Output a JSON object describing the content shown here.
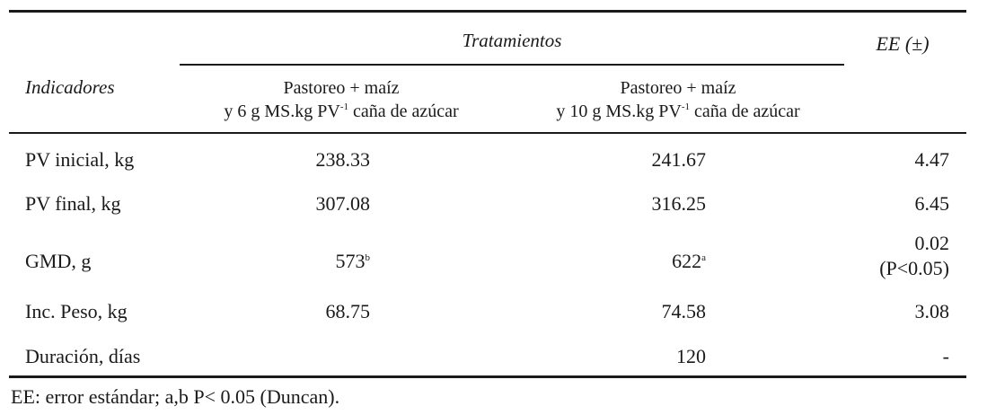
{
  "header": {
    "row_label": "Indicadores",
    "group": "Tratamientos",
    "ee": "EE (±)",
    "columns": [
      {
        "line1": "Pastoreo + maíz",
        "line2_pre": "y 6 g MS.kg PV",
        "line2_sup": "-1",
        "line2_post": " caña de azúcar"
      },
      {
        "line1": "Pastoreo + maíz",
        "line2_pre": "y 10 g MS.kg PV",
        "line2_sup": "-1",
        "line2_post": " caña de azúcar"
      }
    ]
  },
  "rows": [
    {
      "label": "PV inicial, kg",
      "values": [
        "238.33",
        "241.67"
      ],
      "ee": "4.47"
    },
    {
      "label": "PV final, kg",
      "values": [
        "307.08",
        "316.25"
      ],
      "ee": "6.45"
    },
    {
      "label": "GMD, g",
      "values": [
        "573",
        "622"
      ],
      "sups": [
        "b",
        "a"
      ],
      "ee": "0.02",
      "ee_note": "(P<0.05)"
    },
    {
      "label": "Inc. Peso, kg",
      "values": [
        "68.75",
        "74.58"
      ],
      "ee": "3.08"
    },
    {
      "label": "Duración, días",
      "value": "120",
      "ee": "-"
    }
  ],
  "footnote": "EE: error estándar; a,b P< 0.05 (Duncan)."
}
